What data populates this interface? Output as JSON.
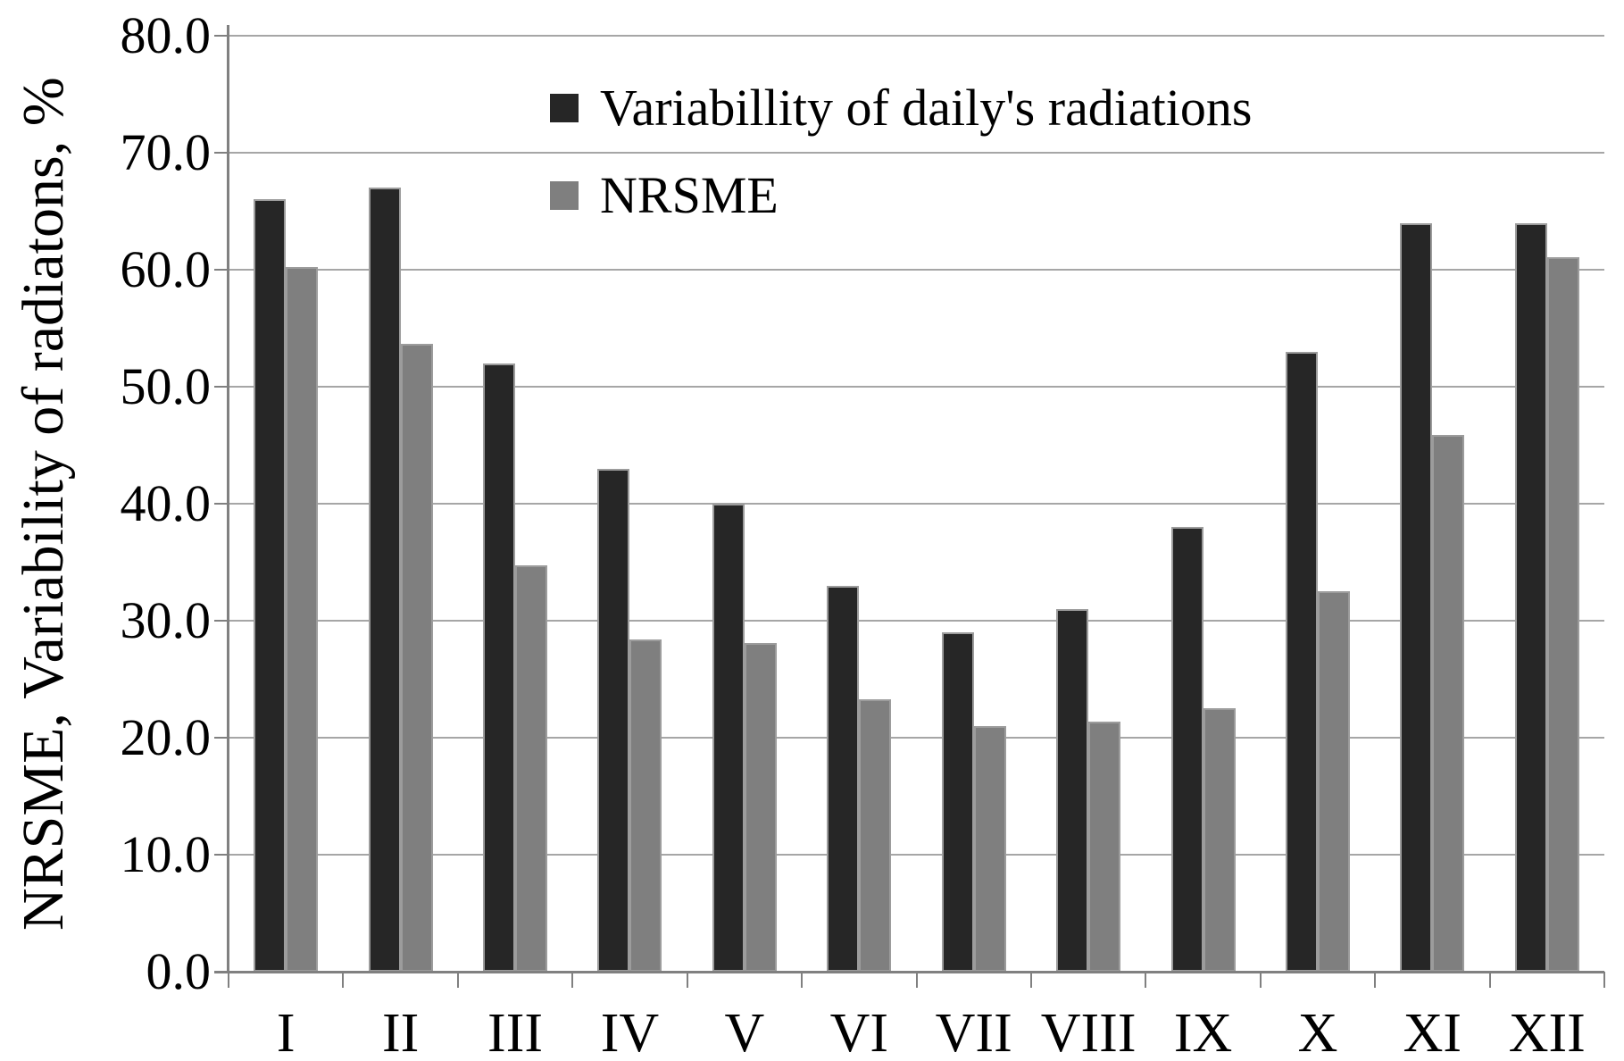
{
  "chart_data": {
    "type": "bar",
    "title": "",
    "ylabel": "NRSME, Variability of radiatons, %",
    "xlabel": "",
    "ylim": [
      0,
      80
    ],
    "ytick_step": 10,
    "ytick_labels": [
      "0.0",
      "10.0",
      "20.0",
      "30.0",
      "40.0",
      "50.0",
      "60.0",
      "70.0",
      "80.0"
    ],
    "categories": [
      "I",
      "II",
      "III",
      "IV",
      "V",
      "VI",
      "VII",
      "VIII",
      "IX",
      "X",
      "XI",
      "XII"
    ],
    "series": [
      {
        "name": "Variabillity of daily's radiations",
        "color": "#262626",
        "values": [
          66.0,
          67.0,
          52.0,
          43.0,
          40.0,
          33.0,
          29.0,
          31.0,
          38.0,
          53.0,
          64.0,
          64.0
        ]
      },
      {
        "name": "NRSME",
        "color": "#7f7f7f",
        "values": [
          60.2,
          53.7,
          34.7,
          28.4,
          28.1,
          23.3,
          21.0,
          21.4,
          22.5,
          32.5,
          45.9,
          61.1
        ]
      }
    ],
    "legend_position": "top-center-inside",
    "grid": "horizontal",
    "gridline_color": "#a6a6a6",
    "axis_color": "#808080"
  }
}
